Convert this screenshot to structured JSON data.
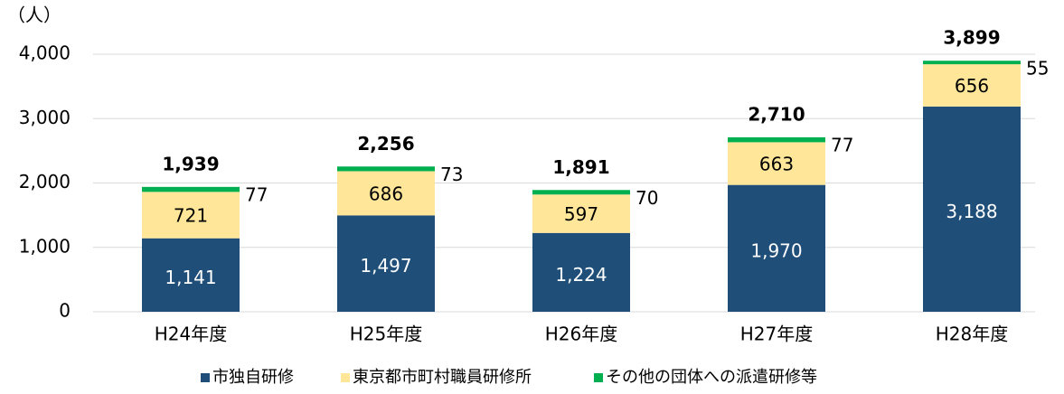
{
  "chart_data": {
    "type": "stacked_bar",
    "y_label": "（人）",
    "categories": [
      "H24年度",
      "H25年度",
      "H26年度",
      "H27年度",
      "H28年度"
    ],
    "series": [
      {
        "name": "市独自研修",
        "color": "#1f4e79",
        "values": [
          1141,
          1497,
          1224,
          1970,
          3188
        ],
        "value_labels": [
          "1,141",
          "1,497",
          "1,224",
          "1,970",
          "3,188"
        ]
      },
      {
        "name": "東京都市町村職員研修所",
        "color": "#ffe699",
        "values": [
          721,
          686,
          597,
          663,
          656
        ]
      },
      {
        "name": "その他の団体への派遣研修等",
        "color": "#00b050",
        "values": [
          77,
          73,
          70,
          77,
          55
        ]
      }
    ],
    "totals": {
      "values": [
        1939,
        2256,
        1891,
        2710,
        3899
      ],
      "value_labels": [
        "1,939",
        "2,256",
        "1,891",
        "2,710",
        "3,899"
      ]
    },
    "ylim": [
      0,
      4000
    ],
    "yticks": [
      0,
      {
        "value": 1000,
        "label": "1,000"
      },
      {
        "value": 2000,
        "label": "2,000"
      },
      {
        "value": 3000,
        "label": "3,000"
      },
      {
        "value": 4000,
        "label": "4,000"
      }
    ],
    "grid": true,
    "legend": "bottom"
  }
}
